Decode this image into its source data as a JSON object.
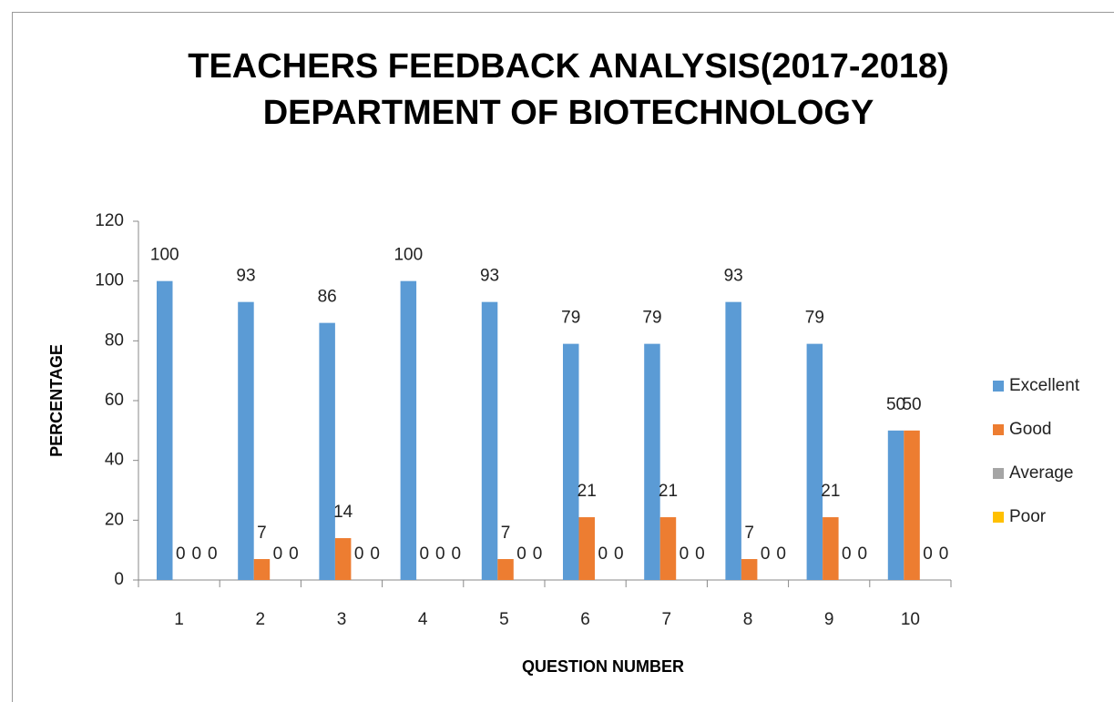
{
  "chart_data": {
    "type": "bar",
    "title": [
      "TEACHERS FEEDBACK ANALYSIS(2017-2018)",
      "DEPARTMENT OF BIOTECHNOLOGY"
    ],
    "x_label": "QUESTION NUMBER",
    "y_label": "PERCENTAGE",
    "categories": [
      "1",
      "2",
      "3",
      "4",
      "5",
      "6",
      "7",
      "8",
      "9",
      "10"
    ],
    "series": [
      {
        "name": "Excellent",
        "color": "#5b9bd5",
        "values": [
          100,
          93,
          86,
          100,
          93,
          79,
          79,
          93,
          79,
          50
        ]
      },
      {
        "name": "Good",
        "color": "#ed7d31",
        "values": [
          0,
          7,
          14,
          0,
          7,
          21,
          21,
          7,
          21,
          50
        ]
      },
      {
        "name": "Average",
        "color": "#a5a5a5",
        "values": [
          0,
          0,
          0,
          0,
          0,
          0,
          0,
          0,
          0,
          0
        ]
      },
      {
        "name": "Poor",
        "color": "#ffc000",
        "values": [
          0,
          0,
          0,
          0,
          0,
          0,
          0,
          0,
          0,
          0
        ]
      }
    ],
    "ylim": [
      0,
      120
    ],
    "yticks": [
      0,
      20,
      40,
      60,
      80,
      100,
      120
    ],
    "legend": "right",
    "data_labels": true
  }
}
